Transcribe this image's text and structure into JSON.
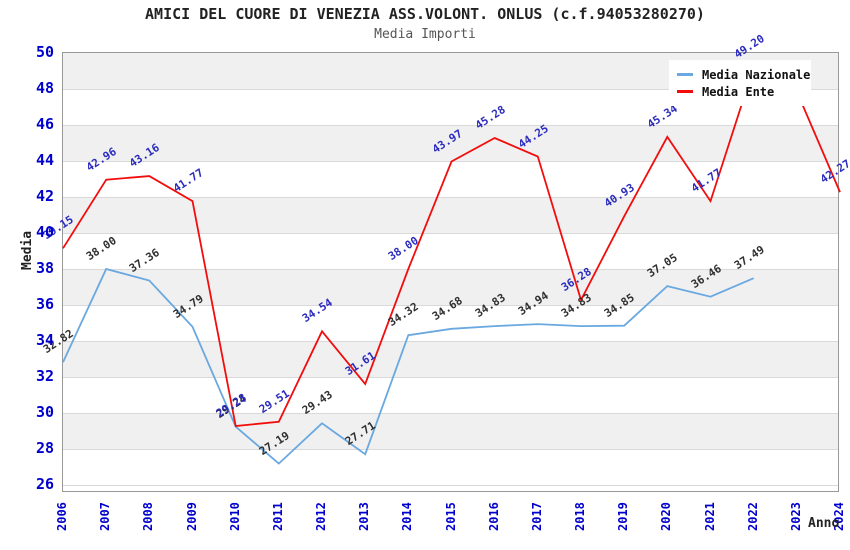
{
  "chart": {
    "title": "AMICI DEL CUORE DI VENEZIA ASS.VOLONT. ONLUS (c.f.94053280270)",
    "subtitle": "Media Importi",
    "x_axis_title": "Anno",
    "y_axis_title": "Media"
  },
  "chart_data": {
    "type": "line",
    "title": "AMICI DEL CUORE DI VENEZIA ASS.VOLONT. ONLUS (c.f.94053280270)",
    "subtitle": "Media Importi",
    "xlabel": "Anno",
    "ylabel": "Media",
    "x": [
      "2006",
      "2007",
      "2008",
      "2009",
      "2010",
      "2011",
      "2012",
      "2013",
      "2014",
      "2015",
      "2016",
      "2017",
      "2018",
      "2019",
      "2020",
      "2021",
      "2022",
      "2023",
      "2024"
    ],
    "ylim": [
      26,
      50
    ],
    "ytick_step": 2,
    "grid": "horizontal-interlaced-bands",
    "legend_position": "top-right",
    "series": [
      {
        "name": "Media Nazionale",
        "color": "#69a8e0",
        "label_color": "#303030",
        "values": [
          32.82,
          38.0,
          37.36,
          34.79,
          29.24,
          27.19,
          29.43,
          27.71,
          34.32,
          34.68,
          34.83,
          34.94,
          34.83,
          34.85,
          37.05,
          36.46,
          37.49,
          null,
          null
        ],
        "labels": [
          "32.82",
          "38.00",
          "37.36",
          "34.79",
          "29.24",
          "27.19",
          "29.43",
          "27.71",
          "34.32",
          "34.68",
          "34.83",
          "34.94",
          "34.83",
          "34.85",
          "37.05",
          "36.46",
          "37.49",
          null,
          null
        ]
      },
      {
        "name": "Media Ente",
        "color": "#f20d0d",
        "label_color": "#2c2cbe",
        "values": [
          39.15,
          42.96,
          43.16,
          41.77,
          29.28,
          29.51,
          34.54,
          31.61,
          38.0,
          43.97,
          45.28,
          44.25,
          36.28,
          40.93,
          45.34,
          41.77,
          49.2,
          47.86,
          42.27
        ],
        "labels": [
          "39.15",
          "42.96",
          "43.16",
          "41.77",
          "29.28",
          "29.51",
          "34.54",
          "31.61",
          "38.00",
          "43.97",
          "45.28",
          "44.25",
          "36.28",
          "40.93",
          "45.34",
          "41.77",
          "49.20",
          null,
          "42.27"
        ]
      }
    ]
  },
  "style": {
    "band_color": "#f0f0f0",
    "gridline_color": "#d9d9d9",
    "plot_border_color": "#999999",
    "axis_label_color": "#0000cd",
    "title_color": "#222222",
    "subtitle_color": "#555555"
  }
}
